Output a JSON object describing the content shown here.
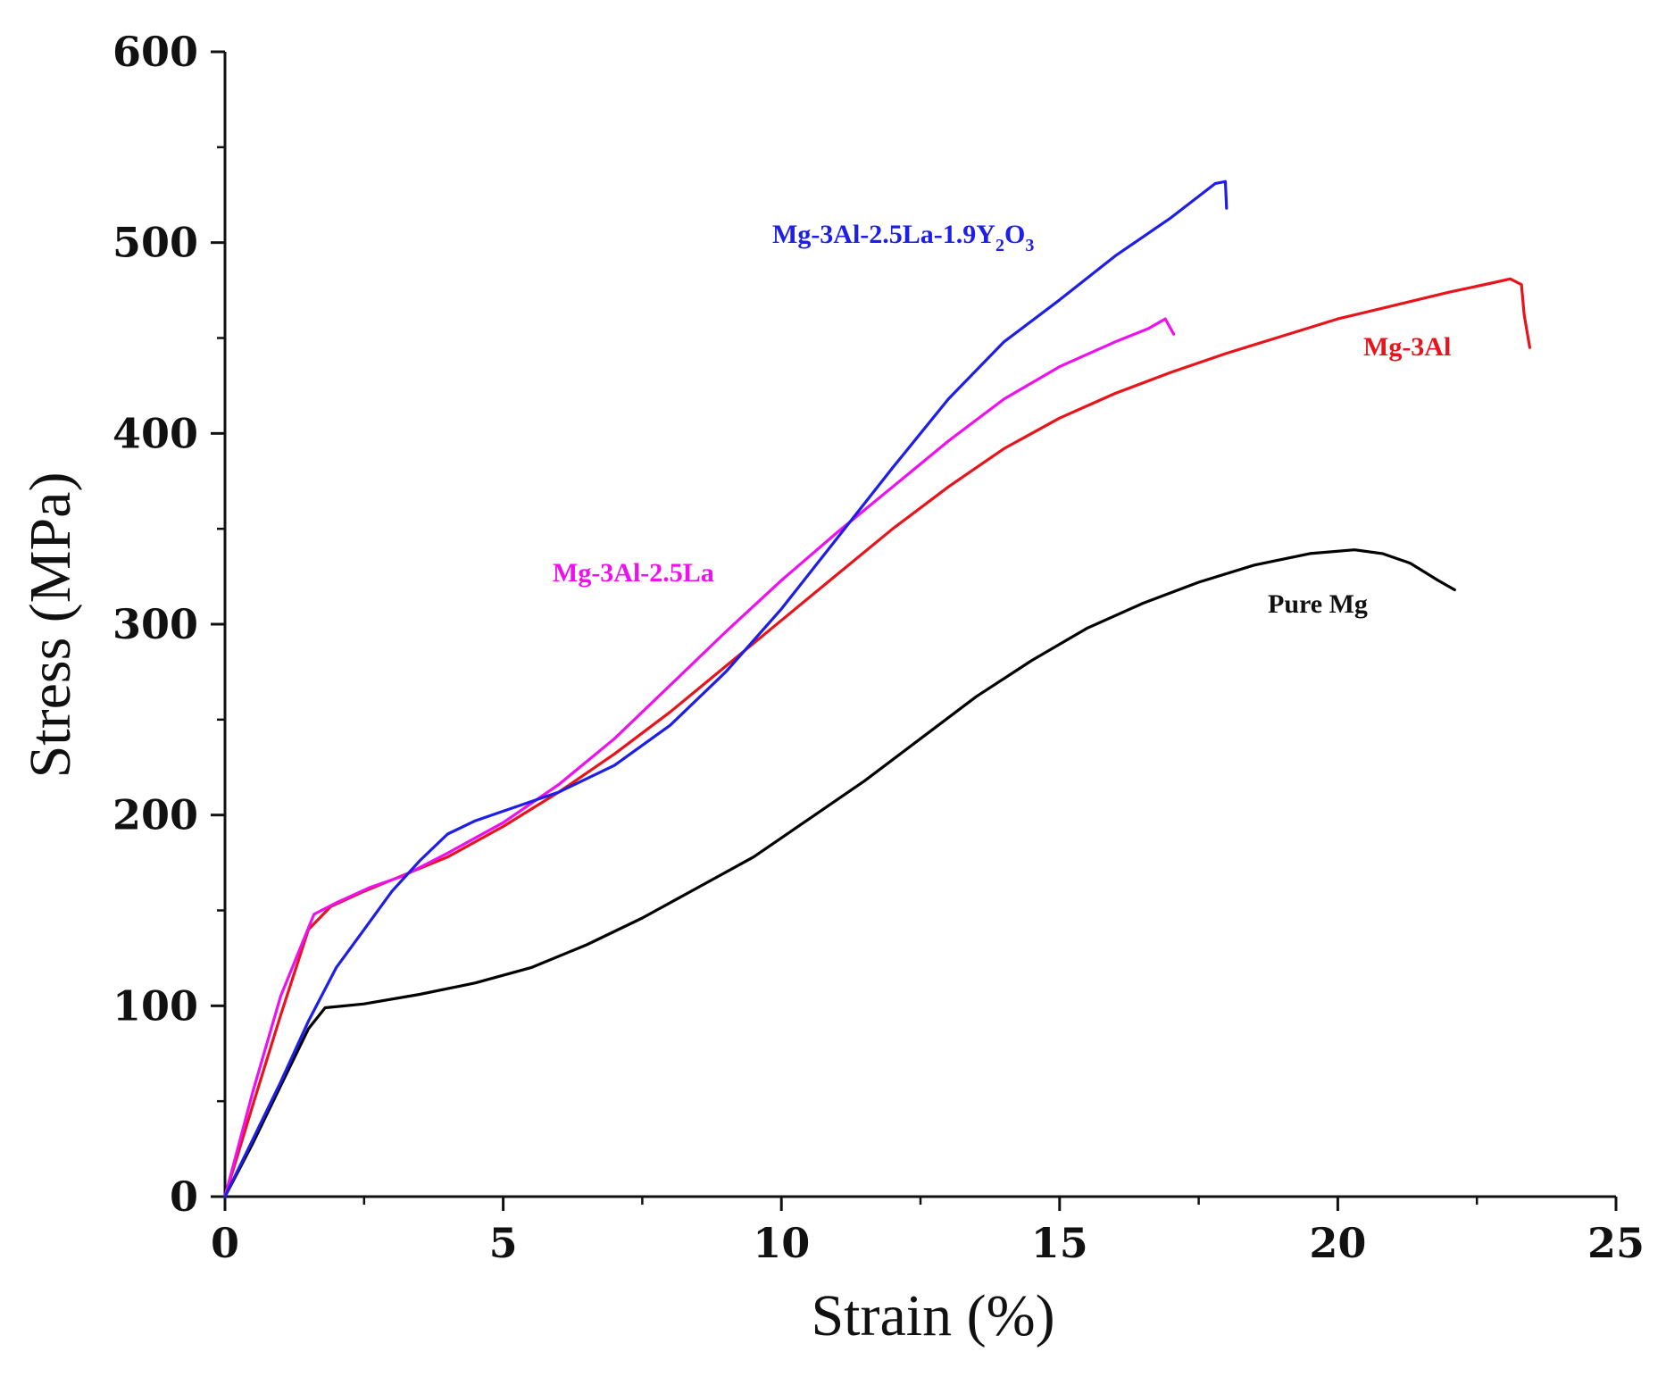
{
  "chart_data": {
    "type": "line",
    "xlabel": "Strain (%)",
    "ylabel": "Stress (MPa)",
    "xlim": [
      0,
      25
    ],
    "ylim": [
      0,
      600
    ],
    "xticks": [
      0,
      5,
      10,
      15,
      20,
      25
    ],
    "yticks": [
      0,
      100,
      200,
      300,
      400,
      500,
      600
    ],
    "grid": false,
    "series": [
      {
        "name": "Pure Mg",
        "color": "#000000",
        "points": [
          [
            0,
            0
          ],
          [
            0.5,
            28
          ],
          [
            1.0,
            58
          ],
          [
            1.5,
            88
          ],
          [
            1.8,
            99
          ],
          [
            2.5,
            101
          ],
          [
            3.5,
            106
          ],
          [
            4.5,
            112
          ],
          [
            5.5,
            120
          ],
          [
            6.5,
            132
          ],
          [
            7.5,
            146
          ],
          [
            8.5,
            162
          ],
          [
            9.5,
            178
          ],
          [
            10.5,
            198
          ],
          [
            11.5,
            218
          ],
          [
            12.5,
            240
          ],
          [
            13.5,
            262
          ],
          [
            14.5,
            281
          ],
          [
            15.5,
            298
          ],
          [
            16.5,
            311
          ],
          [
            17.5,
            322
          ],
          [
            18.5,
            331
          ],
          [
            19.5,
            337
          ],
          [
            20.3,
            339
          ],
          [
            20.8,
            337
          ],
          [
            21.3,
            332
          ],
          [
            21.8,
            323
          ],
          [
            22.1,
            318
          ]
        ]
      },
      {
        "name": "Mg-3Al",
        "color": "#e8141c",
        "points": [
          [
            0,
            0
          ],
          [
            0.5,
            48
          ],
          [
            1.0,
            95
          ],
          [
            1.5,
            140
          ],
          [
            1.9,
            152
          ],
          [
            2.5,
            160
          ],
          [
            3.0,
            166
          ],
          [
            4.0,
            178
          ],
          [
            5.0,
            194
          ],
          [
            6.0,
            212
          ],
          [
            7.0,
            232
          ],
          [
            8.0,
            254
          ],
          [
            9.0,
            278
          ],
          [
            10.0,
            302
          ],
          [
            11.0,
            326
          ],
          [
            12.0,
            350
          ],
          [
            13.0,
            372
          ],
          [
            14.0,
            392
          ],
          [
            15.0,
            408
          ],
          [
            16.0,
            421
          ],
          [
            17.0,
            432
          ],
          [
            18.0,
            442
          ],
          [
            19.0,
            451
          ],
          [
            20.0,
            460
          ],
          [
            21.0,
            467
          ],
          [
            22.0,
            474
          ],
          [
            22.8,
            479
          ],
          [
            23.1,
            481
          ],
          [
            23.3,
            478
          ],
          [
            23.35,
            462
          ],
          [
            23.45,
            445
          ]
        ]
      },
      {
        "name": "Mg-3Al-2.5La",
        "color": "#ee10ee",
        "points": [
          [
            0,
            0
          ],
          [
            0.5,
            55
          ],
          [
            1.0,
            105
          ],
          [
            1.6,
            148
          ],
          [
            2.0,
            154
          ],
          [
            2.6,
            162
          ],
          [
            3.2,
            168
          ],
          [
            4.0,
            180
          ],
          [
            5.0,
            196
          ],
          [
            6.0,
            216
          ],
          [
            7.0,
            240
          ],
          [
            8.0,
            268
          ],
          [
            9.0,
            296
          ],
          [
            10.0,
            323
          ],
          [
            11.0,
            348
          ],
          [
            12.0,
            372
          ],
          [
            13.0,
            396
          ],
          [
            14.0,
            418
          ],
          [
            15.0,
            435
          ],
          [
            16.0,
            448
          ],
          [
            16.6,
            455
          ],
          [
            16.9,
            460
          ],
          [
            17.05,
            452
          ]
        ]
      },
      {
        "name": "Mg-3Al-2.5La-1.9Y2O3",
        "color": "#1e1ee8",
        "points": [
          [
            0,
            0
          ],
          [
            0.5,
            30
          ],
          [
            1.0,
            60
          ],
          [
            1.5,
            92
          ],
          [
            2.0,
            120
          ],
          [
            2.5,
            140
          ],
          [
            3.0,
            160
          ],
          [
            3.5,
            176
          ],
          [
            4.0,
            190
          ],
          [
            4.5,
            197
          ],
          [
            5.0,
            202
          ],
          [
            6.0,
            212
          ],
          [
            7.0,
            226
          ],
          [
            8.0,
            247
          ],
          [
            9.0,
            275
          ],
          [
            10.0,
            308
          ],
          [
            11.0,
            345
          ],
          [
            12.0,
            382
          ],
          [
            13.0,
            418
          ],
          [
            14.0,
            448
          ],
          [
            15.0,
            470
          ],
          [
            16.0,
            493
          ],
          [
            17.0,
            513
          ],
          [
            17.8,
            531
          ],
          [
            17.98,
            532
          ],
          [
            18.0,
            518
          ]
        ]
      }
    ],
    "annotations": [
      {
        "series": "Mg-3Al-2.5La-1.9Y2O3",
        "parts": [
          "Mg-3Al-2.5La-1.9Y",
          "2",
          "O",
          "3"
        ]
      },
      {
        "series": "Mg-3Al",
        "text": "Mg-3Al"
      },
      {
        "series": "Mg-3Al-2.5La",
        "text": "Mg-3Al-2.5La"
      },
      {
        "series": "Pure Mg",
        "text": "Pure Mg"
      }
    ]
  }
}
